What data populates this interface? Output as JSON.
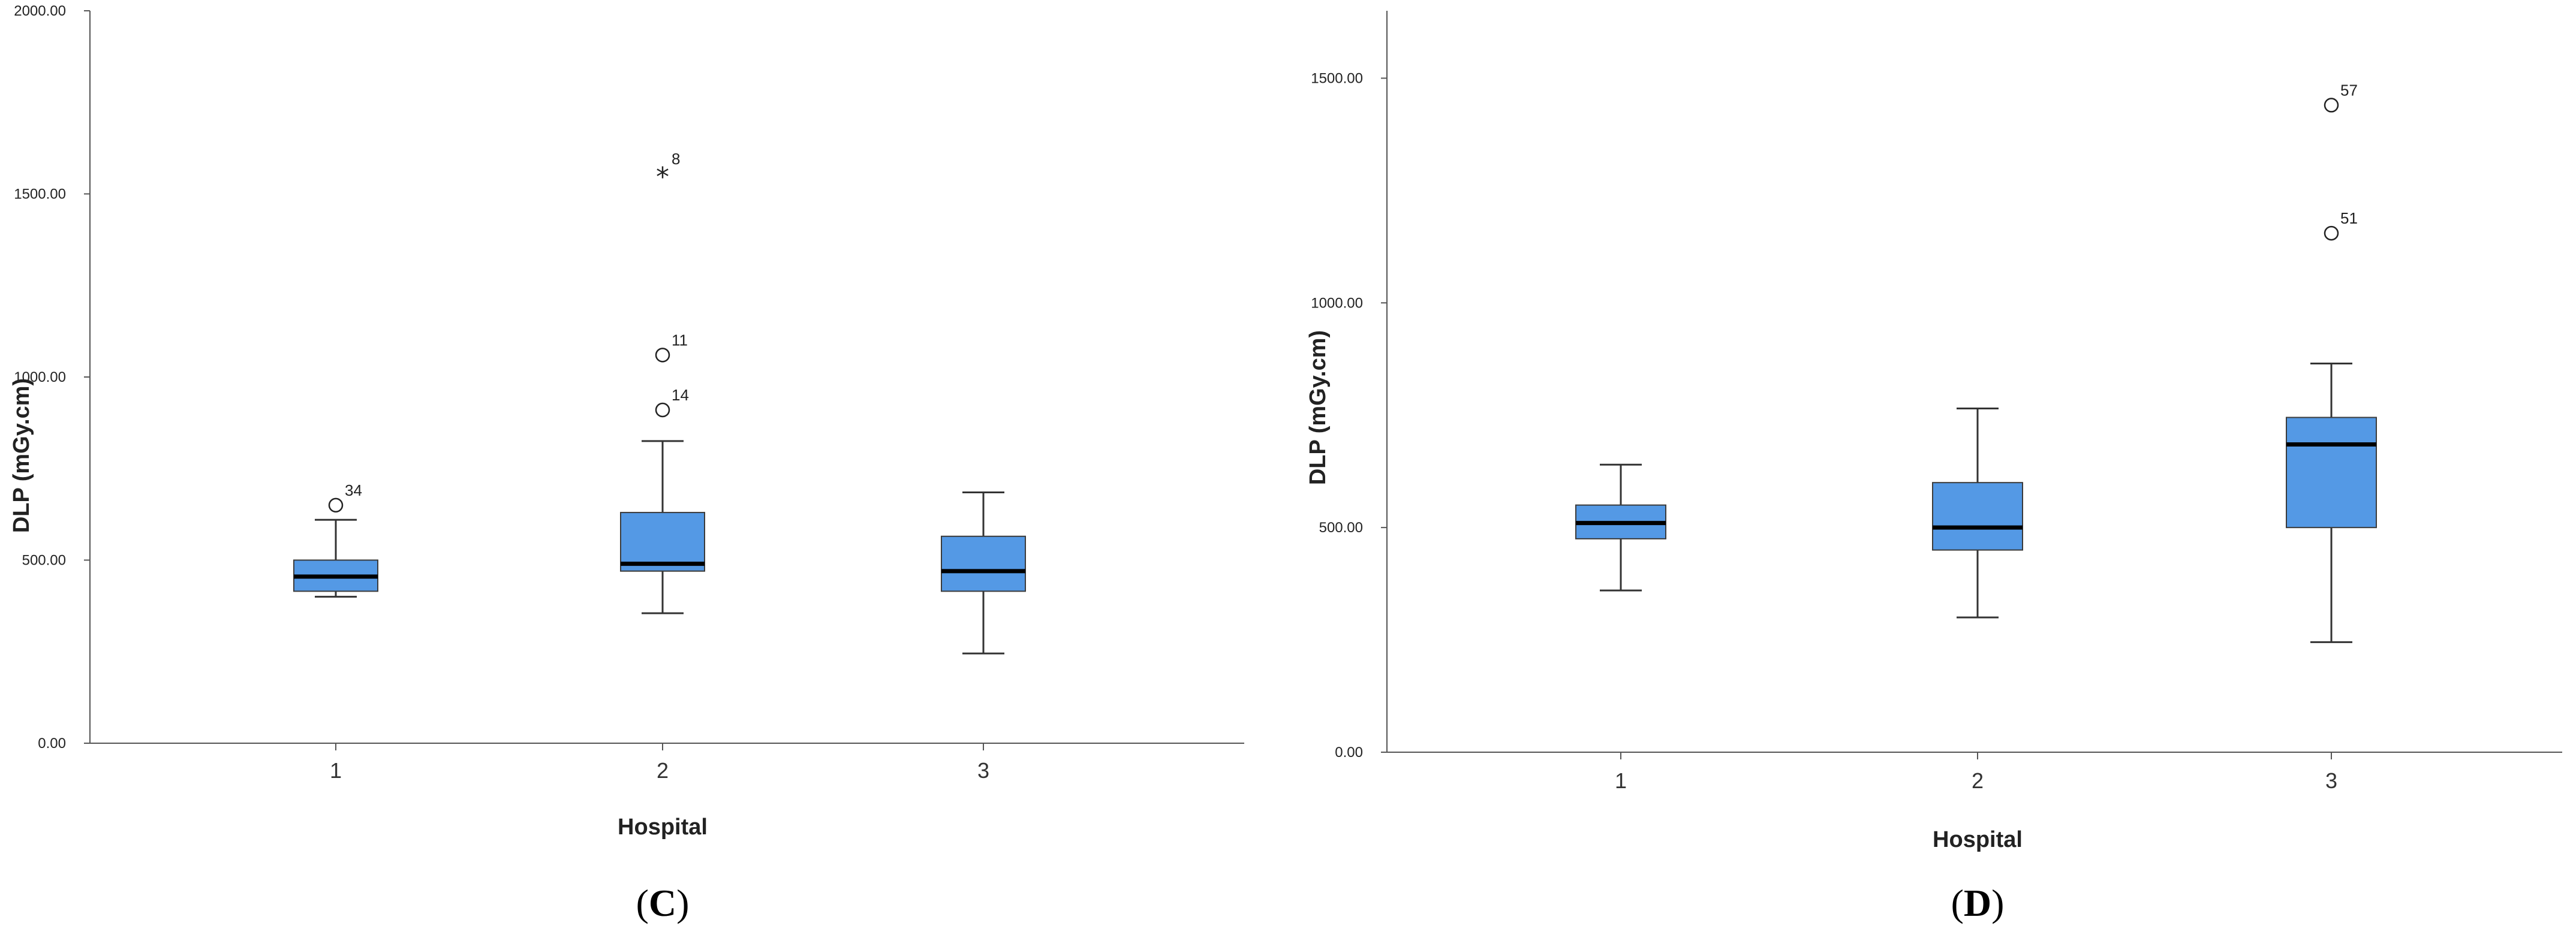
{
  "chart_data": [
    {
      "type": "boxplot",
      "panel_label": "C",
      "xlabel": "Hospital",
      "ylabel": "DLP (mGy.cm)",
      "categories": [
        "1",
        "2",
        "3"
      ],
      "ylim": [
        0,
        2000
      ],
      "yticks": [
        "0.00",
        "500.00",
        "1000.00",
        "1500.00",
        "2000.00"
      ],
      "box_color": "#5499e5",
      "boxes": [
        {
          "category": "1",
          "whisker_low": 400,
          "q1": 415,
          "median": 455,
          "q3": 500,
          "whisker_high": 610
        },
        {
          "category": "2",
          "whisker_low": 355,
          "q1": 470,
          "median": 490,
          "q3": 630,
          "whisker_high": 825
        },
        {
          "category": "3",
          "whisker_low": 245,
          "q1": 415,
          "median": 470,
          "q3": 565,
          "whisker_high": 685
        }
      ],
      "outliers": [
        {
          "category": "1",
          "value": 650,
          "label": "34",
          "marker": "circle"
        },
        {
          "category": "2",
          "value": 1555,
          "label": "8",
          "marker": "star"
        },
        {
          "category": "2",
          "value": 1060,
          "label": "11",
          "marker": "circle"
        },
        {
          "category": "2",
          "value": 910,
          "label": "14",
          "marker": "circle"
        }
      ]
    },
    {
      "type": "boxplot",
      "panel_label": "D",
      "xlabel": "Hospital",
      "ylabel": "DLP (mGy.cm)",
      "categories": [
        "1",
        "2",
        "3"
      ],
      "ylim": [
        0,
        1650
      ],
      "yticks": [
        "0.00",
        "500.00",
        "1000.00",
        "1500.00"
      ],
      "box_color": "#5499e5",
      "boxes": [
        {
          "category": "1",
          "whisker_low": 360,
          "q1": 475,
          "median": 510,
          "q3": 550,
          "whisker_high": 640
        },
        {
          "category": "2",
          "whisker_low": 300,
          "q1": 450,
          "median": 500,
          "q3": 600,
          "whisker_high": 765
        },
        {
          "category": "3",
          "whisker_low": 245,
          "q1": 500,
          "median": 685,
          "q3": 745,
          "whisker_high": 865
        }
      ],
      "outliers": [
        {
          "category": "3",
          "value": 1440,
          "label": "57",
          "marker": "circle"
        },
        {
          "category": "3",
          "value": 1155,
          "label": "51",
          "marker": "circle"
        }
      ]
    }
  ]
}
